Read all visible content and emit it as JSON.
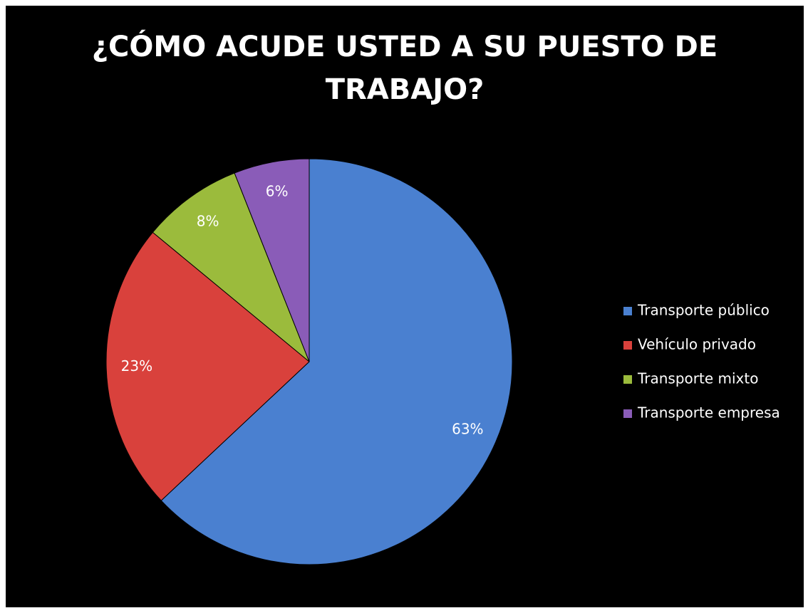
{
  "chart_data": {
    "type": "pie",
    "title": "¿CÓMO ACUDE USTED A SU PUESTO DE TRABAJO?",
    "categories": [
      "Transporte público",
      "Vehículo privado",
      "Transporte mixto",
      "Transporte empresa"
    ],
    "values": [
      63,
      23,
      8,
      6
    ],
    "value_labels": [
      "63%",
      "23%",
      "8%",
      "6%"
    ],
    "colors": [
      "#4a80d0",
      "#d9413c",
      "#9bbb3c",
      "#8a5cb8"
    ],
    "legend": "right"
  }
}
